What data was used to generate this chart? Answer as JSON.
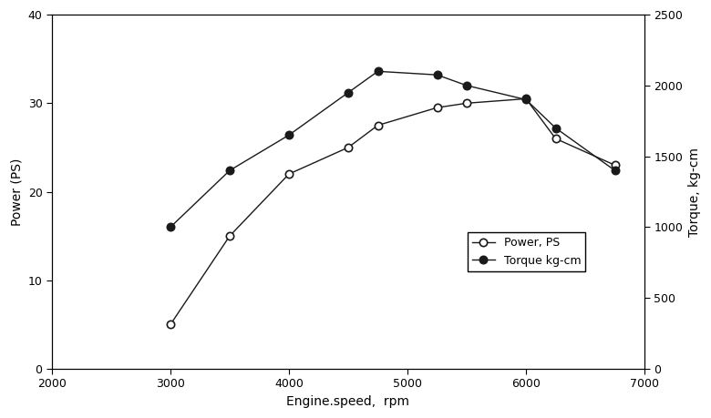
{
  "rpm_power": [
    3000,
    3500,
    4000,
    4500,
    4750,
    5250,
    5500,
    6000,
    6250,
    6750
  ],
  "power_ps": [
    5,
    15,
    22,
    25,
    27.5,
    29.5,
    30,
    30.5,
    26,
    23
  ],
  "rpm_torque": [
    3000,
    3500,
    4000,
    4500,
    4750,
    5250,
    5500,
    6000,
    6250,
    6750
  ],
  "torque_kgcm": [
    1000,
    1400,
    1650,
    1950,
    2100,
    2075,
    2000,
    1900,
    1700,
    1400
  ],
  "xlabel": "Engine.speed,  rpm",
  "ylabel_left": "Power (PS)",
  "ylabel_right": "Torque, kg-cm",
  "xlim": [
    2000,
    7000
  ],
  "ylim_left": [
    0,
    40
  ],
  "ylim_right": [
    0,
    2500
  ],
  "xticks": [
    2000,
    3000,
    4000,
    5000,
    6000,
    7000
  ],
  "yticks_left": [
    0,
    10,
    20,
    30,
    40
  ],
  "yticks_right": [
    0,
    500,
    1000,
    1500,
    2000,
    2500
  ],
  "legend_power": "Power, PS",
  "legend_torque": "Torque kg-cm",
  "line_color": "#1a1a1a",
  "bg_color": "#ffffff",
  "figsize": [
    7.8,
    4.59
  ],
  "dpi": 100
}
